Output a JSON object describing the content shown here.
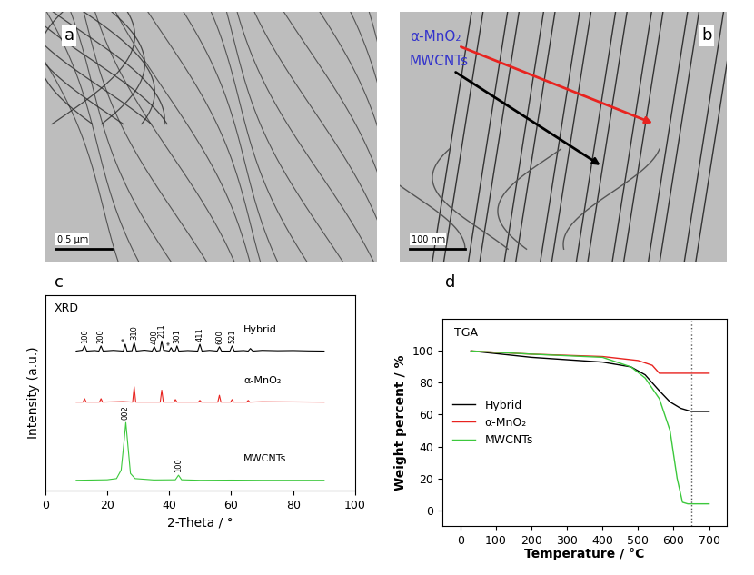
{
  "images": [
    {
      "panel": "a",
      "scale_bar": "0.5 μm"
    },
    {
      "panel": "b",
      "scale_bar": "100 nm",
      "labels": [
        {
          "text": "α-MnO₂",
          "color": "#3333cc",
          "arrow_color": "#e8231f"
        },
        {
          "text": "MWCNTs",
          "color": "#3333cc",
          "arrow_color": "#000000"
        }
      ]
    }
  ],
  "chart_data": [
    {
      "type": "line",
      "panel": "c",
      "title": "XRD",
      "x_label": "2-Theta / °",
      "y_label": "Intensity (a.u.)",
      "xlim": [
        0,
        100
      ],
      "xticks": [
        0,
        20,
        40,
        60,
        80,
        100
      ],
      "ylim": [
        0,
        115
      ],
      "yticks": [],
      "tick_labels": "x",
      "series": [
        {
          "name": "Hybrid",
          "color": "#000000",
          "x": [
            10,
            12,
            12.7,
            13.4,
            16,
            17.3,
            18,
            18.7,
            22,
            25.2,
            25.8,
            26.4,
            28.0,
            28.7,
            29.4,
            32,
            34.5,
            35.2,
            35.9,
            37.0,
            37.6,
            38.2,
            40.0,
            40.6,
            41.2,
            42.0,
            42.5,
            43.1,
            46,
            49.2,
            49.9,
            50.6,
            53,
            55.5,
            56.2,
            56.9,
            59.6,
            60.3,
            61.0,
            64,
            65.5,
            66.2,
            67,
            70,
            75,
            80,
            85,
            90
          ],
          "values": [
            82,
            82.5,
            85,
            82,
            82.3,
            82,
            85,
            82,
            82.4,
            82,
            86,
            82,
            82.2,
            87,
            82,
            82.5,
            82,
            84.5,
            82,
            82.3,
            88,
            82.5,
            82,
            84,
            82,
            82.2,
            85,
            82,
            82.3,
            82,
            86,
            82,
            82.4,
            82,
            84.5,
            82,
            82,
            85,
            82,
            82.3,
            82,
            83.5,
            82,
            82.4,
            82.2,
            82.3,
            82.1,
            82
          ]
        },
        {
          "name": "α-MnO₂",
          "color": "#e8231f",
          "x": [
            10,
            12.2,
            12.7,
            13.2,
            17.5,
            18,
            18.5,
            25,
            28.2,
            28.7,
            29.2,
            37.1,
            37.6,
            38.1,
            41.5,
            42,
            42.5,
            49.4,
            49.9,
            50.4,
            55.7,
            56.2,
            56.7,
            59.8,
            60.3,
            60.8,
            65,
            65.5,
            66,
            70,
            80,
            90
          ],
          "values": [
            52,
            52,
            54,
            52,
            52,
            54,
            52,
            52.3,
            52,
            61,
            52,
            52,
            59,
            52,
            52,
            53.5,
            52,
            52,
            53,
            52,
            52,
            56,
            52,
            52,
            53.5,
            52,
            52,
            53,
            52,
            52.2,
            52.1,
            52
          ]
        },
        {
          "name": "MWCNTs",
          "color": "#3cc83c",
          "x": [
            10,
            20,
            23,
            24.5,
            25.5,
            26,
            26.5,
            27.5,
            29,
            35,
            42,
            43,
            44,
            50,
            60,
            70,
            80,
            90
          ],
          "values": [
            6,
            6.3,
            7,
            12,
            30,
            40,
            30,
            10,
            7,
            6.2,
            6.3,
            9,
            6.3,
            6,
            6.1,
            6,
            6,
            6
          ]
        }
      ],
      "annotations": [
        {
          "text": "100",
          "x": 12.7,
          "series": "Hybrid"
        },
        {
          "text": "200",
          "x": 18,
          "series": "Hybrid"
        },
        {
          "text": "*",
          "x": 25.8,
          "series": "Hybrid"
        },
        {
          "text": "310",
          "x": 28.7,
          "series": "Hybrid"
        },
        {
          "text": "400",
          "x": 35.2,
          "series": "Hybrid"
        },
        {
          "text": "211",
          "x": 37.6,
          "series": "Hybrid"
        },
        {
          "text": "*",
          "x": 40.6,
          "series": "Hybrid"
        },
        {
          "text": "301",
          "x": 42.5,
          "series": "Hybrid"
        },
        {
          "text": "411",
          "x": 49.9,
          "series": "Hybrid"
        },
        {
          "text": "600",
          "x": 56.2,
          "series": "Hybrid"
        },
        {
          "text": "521",
          "x": 60.3,
          "series": "Hybrid"
        },
        {
          "text": "002",
          "x": 26,
          "series": "MWCNTs"
        },
        {
          "text": "100",
          "x": 43,
          "series": "MWCNTs"
        }
      ]
    },
    {
      "type": "line",
      "panel": "d",
      "title": "TGA",
      "x_label": "Temperature / °C",
      "y_label": "Weight percent / %",
      "xlim": [
        -50,
        750
      ],
      "xticks": [
        0,
        100,
        200,
        300,
        400,
        500,
        600,
        700
      ],
      "ylim": [
        -10,
        120
      ],
      "yticks": [
        0,
        20,
        40,
        60,
        80,
        100
      ],
      "legend": "center left",
      "vline": 650,
      "series": [
        {
          "name": "Hybrid",
          "color": "#000000",
          "x": [
            30,
            200,
            400,
            480,
            520,
            560,
            590,
            620,
            650,
            700
          ],
          "values": [
            100,
            96,
            93,
            90,
            85,
            75,
            68,
            64,
            62,
            62
          ]
        },
        {
          "name": "α-MnO₂",
          "color": "#e8231f",
          "x": [
            30,
            200,
            400,
            500,
            540,
            560,
            700
          ],
          "values": [
            100,
            98,
            96.5,
            94,
            91,
            86,
            86
          ]
        },
        {
          "name": "MWCNTs",
          "color": "#3cc83c",
          "x": [
            30,
            200,
            400,
            480,
            520,
            560,
            590,
            610,
            625,
            640,
            700
          ],
          "values": [
            100,
            98,
            96,
            90,
            83,
            70,
            50,
            20,
            5,
            4,
            4
          ]
        }
      ]
    }
  ]
}
